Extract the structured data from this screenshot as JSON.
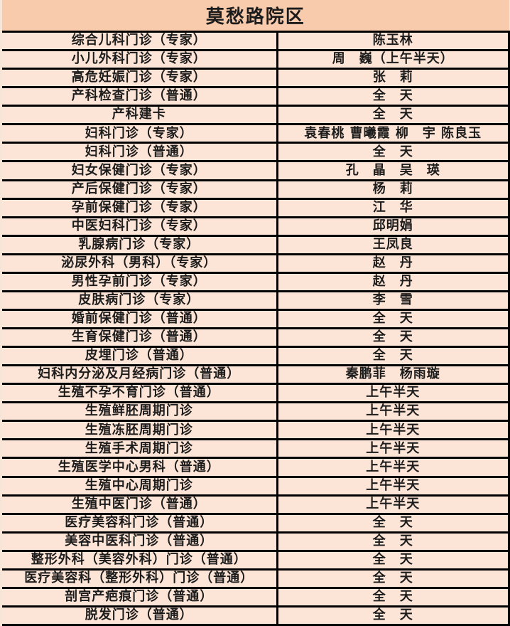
{
  "title": "莫愁路院区",
  "colors": {
    "header_bg": "#F8CBAD",
    "row_bg": "#FCE4D6",
    "border": "#000000",
    "text": "#1C1C1C"
  },
  "rows": [
    {
      "dept": "综合儿科门诊（专家）",
      "value": "陈玉林"
    },
    {
      "dept": "小儿外科门诊（专家）",
      "value": "周　巍（上午半天）"
    },
    {
      "dept": "高危妊娠门诊（专家）",
      "value": "张　莉"
    },
    {
      "dept": "产科检查门诊（普通）",
      "value": "全　天"
    },
    {
      "dept": "产科建卡",
      "value": "全　天"
    },
    {
      "dept": "妇科门诊（专家）",
      "value": "袁春桃 曹曦霞 柳　宇 陈良玉"
    },
    {
      "dept": "妇科门诊（普通）",
      "value": "全　天"
    },
    {
      "dept": "妇女保健门诊（专家）",
      "value": "孔　晶　吴　瑛"
    },
    {
      "dept": "产后保健门诊（专家）",
      "value": "杨　莉"
    },
    {
      "dept": "孕前保健门诊（专家）",
      "value": "江　华"
    },
    {
      "dept": "中医妇科门诊（专家）",
      "value": "邱明娟"
    },
    {
      "dept": "乳腺病门诊（专家）",
      "value": "王凤良"
    },
    {
      "dept": "泌尿外科（男科）（专家）",
      "value": "赵　丹"
    },
    {
      "dept": "男性孕前门诊（专家）",
      "value": "赵　丹"
    },
    {
      "dept": "皮肤病门诊（专家）",
      "value": "李　雪"
    },
    {
      "dept": "婚前保健门诊（普通）",
      "value": "全　天"
    },
    {
      "dept": "生育保健门诊（普通）",
      "value": "全　天"
    },
    {
      "dept": "皮埋门诊（普通）",
      "value": "全　天"
    },
    {
      "dept": "妇科内分泌及月经病门诊（普通）",
      "value": "秦鹏菲　杨雨璇"
    },
    {
      "dept": "生殖不孕不育门诊（普通）",
      "value": "上午半天"
    },
    {
      "dept": "生殖鲜胚周期门诊",
      "value": "上午半天"
    },
    {
      "dept": "生殖冻胚周期门诊",
      "value": "上午半天"
    },
    {
      "dept": "生殖手术周期门诊",
      "value": "上午半天"
    },
    {
      "dept": "生殖医学中心男科（普通）",
      "value": "上午半天"
    },
    {
      "dept": "生殖中心周期门诊",
      "value": "上午半天"
    },
    {
      "dept": "生殖中医门诊（普通）",
      "value": "上午半天"
    },
    {
      "dept": "医疗美容科门诊（普通）",
      "value": "全　天"
    },
    {
      "dept": "美容中医科门诊（普通）",
      "value": "全　天"
    },
    {
      "dept": "整形外科（美容外科）门诊（普通）",
      "value": "全　天"
    },
    {
      "dept": "医疗美容科（整形外科）门诊（普通）",
      "value": "全　天"
    },
    {
      "dept": "剖宫产疤痕门诊（普通）",
      "value": "全　天"
    },
    {
      "dept": "脱发门诊（普通）",
      "value": "全　天"
    }
  ]
}
